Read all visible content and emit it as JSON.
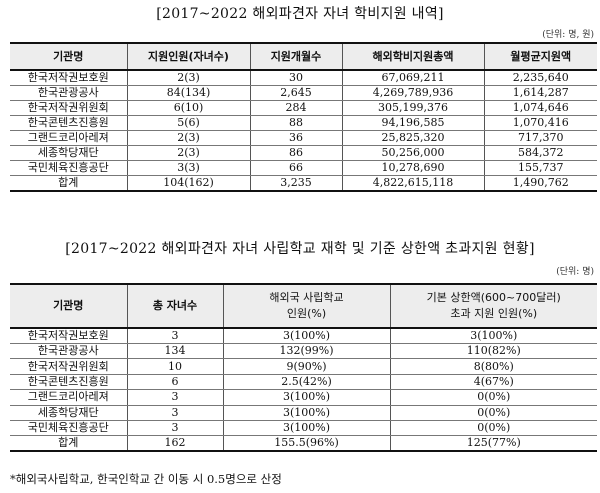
{
  "table1": {
    "title": "[2017~2022 해외파견자 자녀 학비지원 내역]",
    "unit": "(단위: 명, 원)",
    "headers": [
      "기관명",
      "지원인원(자녀수)",
      "지원개월수",
      "해외학비지원총액",
      "월평균지원액"
    ],
    "rows": [
      [
        "한국저작권보호원",
        "2(3)",
        "30",
        "67,069,211",
        "2,235,640"
      ],
      [
        "한국관광공사",
        "84(134)",
        "2,645",
        "4,269,789,936",
        "1,614,287"
      ],
      [
        "한국저작권위원회",
        "6(10)",
        "284",
        "305,199,376",
        "1,074,646"
      ],
      [
        "한국콘텐츠진흥원",
        "5(6)",
        "88",
        "94,196,585",
        "1,070,416"
      ],
      [
        "그랜드코리아레져",
        "2(3)",
        "36",
        "25,825,320",
        "717,370"
      ],
      [
        "세종학당재단",
        "2(3)",
        "86",
        "50,256,000",
        "584,372"
      ],
      [
        "국민체육진흥공단",
        "3(3)",
        "66",
        "10,278,690",
        "155,737"
      ],
      [
        "합계",
        "104(162)",
        "3,235",
        "4,822,615,118",
        "1,490,762"
      ]
    ]
  },
  "table2": {
    "title": "[2017~2022 해외파견자 자녀 사립학교 재학 및 기준 상한액 초과지원 현황]",
    "unit": "(단위: 명)",
    "headers": {
      "col1": "기관명",
      "col2": "총 자녀수",
      "col3_line1": "해외국 사립학교",
      "col3_line2": "인원(%)",
      "col4_line1": "기본 상한액(600~700달러)",
      "col4_line2": "초과 지원 인원(%)"
    },
    "rows": [
      [
        "한국저작권보호원",
        "3",
        "3(100%)",
        "3(100%)"
      ],
      [
        "한국관광공사",
        "134",
        "132(99%)",
        "110(82%)"
      ],
      [
        "한국저작권위원회",
        "10",
        "9(90%)",
        "8(80%)"
      ],
      [
        "한국콘텐츠진흥원",
        "6",
        "2.5(42%)",
        "4(67%)"
      ],
      [
        "그랜드코리아레져",
        "3",
        "3(100%)",
        "0(0%)"
      ],
      [
        "세종학당재단",
        "3",
        "3(100%)",
        "0(0%)"
      ],
      [
        "국민체육진흥공단",
        "3",
        "3(100%)",
        "0(0%)"
      ],
      [
        "합계",
        "162",
        "155.5(96%)",
        "125(77%)"
      ]
    ]
  },
  "footnote": "*해외국사립학교, 한국인학교 간 이동 시 0.5명으로 산정"
}
